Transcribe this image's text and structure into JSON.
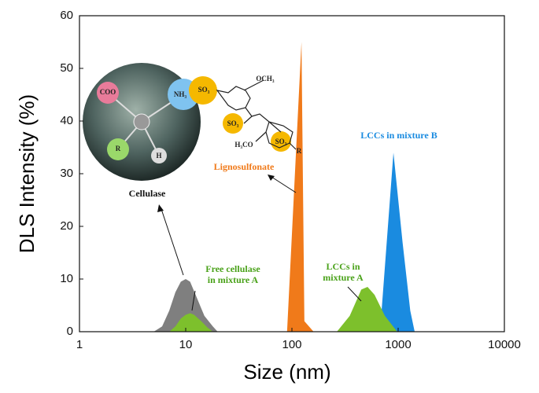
{
  "chart_data": {
    "type": "area",
    "x_label": "Size (nm)",
    "y_label": "DLS Intensity (%)",
    "x_scale": "log",
    "xlim": [
      1,
      10000
    ],
    "xticks": [
      1,
      10,
      100,
      1000,
      10000
    ],
    "ylim": [
      0,
      60
    ],
    "yticks": [
      0,
      10,
      20,
      30,
      40,
      50,
      60
    ],
    "series": [
      {
        "color": "#7f7f7f",
        "x": [
          5,
          6,
          7,
          8,
          9,
          10,
          11,
          13,
          15,
          18,
          20
        ],
        "values": [
          0,
          1,
          4,
          7.5,
          9.5,
          10,
          9.5,
          6,
          3,
          1,
          0
        ]
      },
      {
        "color": "#7dc02c",
        "x": [
          7,
          8,
          9,
          10,
          11,
          12,
          14,
          16,
          18
        ],
        "values": [
          0,
          1,
          2.5,
          3.2,
          3.5,
          3.2,
          2,
          0.8,
          0
        ]
      },
      {
        "color": "#f07a1a",
        "x": [
          90,
          123,
          131,
          160
        ],
        "values": [
          0,
          55,
          2,
          0
        ]
      },
      {
        "color": "#1a8be0",
        "x": [
          675,
          903,
          1100,
          1300,
          1430
        ],
        "values": [
          0,
          34,
          17,
          4,
          0
        ]
      },
      {
        "color": "#7dc02c",
        "x": [
          265,
          350,
          450,
          515,
          600,
          750,
          980
        ],
        "values": [
          0,
          3,
          8,
          8.5,
          7,
          3,
          0
        ]
      }
    ],
    "annotations": [
      {
        "lines": [
          "Cellulase"
        ],
        "color": "#111111"
      },
      {
        "lines": [
          "Lignosulfonate"
        ],
        "color": "#f07a1a"
      },
      {
        "lines": [
          "LCCs in mixture B"
        ],
        "color": "#1a8be0"
      },
      {
        "lines": [
          "Free cellulase",
          "in mixture A"
        ],
        "color": "#4aa21a"
      },
      {
        "lines": [
          "LCCs  in",
          "mixture A"
        ],
        "color": "#4aa21a"
      }
    ],
    "illustration_labels": [
      "COO",
      "NH₃",
      "SO₃",
      "R",
      "H",
      "SO₃",
      "SO₃",
      "R",
      "H₃CO",
      "OCH₃"
    ]
  }
}
